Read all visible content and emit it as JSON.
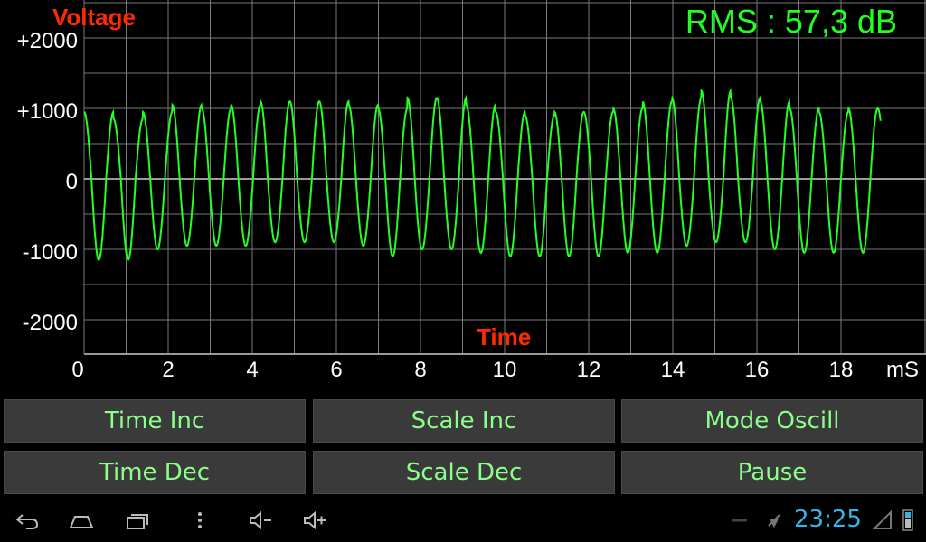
{
  "scope": {
    "y_title": "Voltage",
    "x_title": "Time",
    "rms_text": "RMS : 57,3 dB",
    "x_unit": "mS",
    "y_ticks": [
      "+2000",
      "+1000",
      "0",
      "-1000",
      "-2000"
    ],
    "x_ticks": [
      "0",
      "2",
      "4",
      "6",
      "8",
      "10",
      "12",
      "14",
      "16",
      "18"
    ],
    "colors": {
      "trace": "#22ff22",
      "grid": "#7a7a7a",
      "titles": "#ff2a00",
      "rms": "#22ff22"
    }
  },
  "chart_data": {
    "type": "line",
    "title": "",
    "xlabel": "Time",
    "ylabel": "Voltage",
    "x_unit": "mS",
    "xlim": [
      0,
      20
    ],
    "ylim": [
      -2500,
      2500
    ],
    "grid": true,
    "series": [
      {
        "name": "",
        "description_values": "sine wave, approx 1.43 kHz, ~28 cycles over 19 mS",
        "peaks": [
          950,
          850,
          950,
          1050,
          1000,
          1050,
          1100,
          1100,
          1100,
          1050,
          1000,
          1150,
          1150,
          1050,
          950,
          900,
          950,
          950,
          1000,
          1100,
          1150,
          1250,
          1150,
          1100,
          1000,
          950,
          1000
        ],
        "troughs": [
          -1150,
          -1150,
          -1000,
          -950,
          -950,
          -950,
          -900,
          -900,
          -900,
          -950,
          -1100,
          -1000,
          -1000,
          -1050,
          -1100,
          -1100,
          -1100,
          -1100,
          -1050,
          -1050,
          -950,
          -900,
          -900,
          -1000,
          -1050,
          -1050,
          -1050
        ]
      }
    ]
  },
  "controls": {
    "time_inc": "Time Inc",
    "scale_inc": "Scale Inc",
    "mode": "Mode Oscill",
    "time_dec": "Time Dec",
    "scale_dec": "Scale Dec",
    "pause": "Pause"
  },
  "navbar": {
    "clock": "23:25",
    "icons": [
      "back-icon",
      "home-icon",
      "recent-apps-icon",
      "menu-icon",
      "volume-down-icon",
      "volume-up-icon"
    ],
    "status_icons": [
      "usb-icon",
      "wifi-off-icon",
      "signal-icon",
      "battery-icon"
    ]
  }
}
